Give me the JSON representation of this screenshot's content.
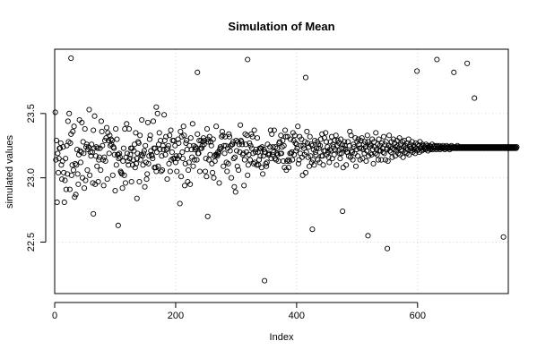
{
  "chart_data": {
    "type": "scatter",
    "title": "Simulation of Mean",
    "xlabel": "Index",
    "ylabel": "simulated values",
    "xlim": [
      0,
      750
    ],
    "ylim": [
      22.1,
      24.0
    ],
    "x_ticks": [
      0,
      200,
      400,
      600
    ],
    "y_ticks": [
      22.5,
      23.0,
      23.5
    ],
    "x_tick_labels": [
      "0",
      "200",
      "400",
      "600"
    ],
    "y_tick_labels": [
      "22.5",
      "23.0",
      "23.5"
    ],
    "grid": true,
    "series": [
      {
        "n": 750,
        "marker": "open-circle",
        "values": [
          23.51,
          23.14,
          23.29,
          22.81,
          23.19,
          23.04,
          23.15,
          23.23,
          23.23,
          23.27,
          23.1,
          22.99,
          23.13,
          23.24,
          23.04,
          22.81,
          22.98,
          23.15,
          22.91,
          23.25,
          23.03,
          23.44,
          23.28,
          23.5,
          22.91,
          23.27,
          23.34,
          23.02,
          23.1,
          23.36,
          23.06,
          23.4,
          22.85,
          23.11,
          22.87,
          23.1,
          23.22,
          23.03,
          22.95,
          23.18,
          23.45,
          23.21,
          23.12,
          23.2,
          23.43,
          23.0,
          23.28,
          23.19,
          22.92,
          23.38,
          22.98,
          23.24,
          23.26,
          23.06,
          23.22,
          23.24,
          23.53,
          23.02,
          23.2,
          23.17,
          23.26,
          23.2,
          22.96,
          23.37,
          23.23,
          23.48,
          22.95,
          23.17,
          23.24,
          23.09,
          23.23,
          22.97,
          23.14,
          23.16,
          23.23,
          23.06,
          23.44,
          23.36,
          23.25,
          23.14,
          22.94,
          23.16,
          23.29,
          23.13,
          23.31,
          23.39,
          22.99,
          23.35,
          23.29,
          23.19,
          23.33,
          23.25,
          23.3,
          23.26,
          23.29,
          23.02,
          23.24,
          23.23,
          23.18,
          22.9,
          23.38,
          23.1,
          23.3,
          23.18,
          23.18,
          23.15,
          23.19,
          23.16,
          23.05,
          23.04,
          23.03,
          22.92,
          23.13,
          23.23,
          23.02,
          23.38,
          22.96,
          23.16,
          23.42,
          23.19,
          23.13,
          23.1,
          23.38,
          23.15,
          23.18,
          23.23,
          22.97,
          23.23,
          23.1,
          23.14,
          23.21,
          23.26,
          23.08,
          23.35,
          23.11,
          23.15,
          23.19,
          23.28,
          23.27,
          22.97,
          23.33,
          23.14,
          23.18,
          23.45,
          23.17,
          23.1,
          23.19,
          23.21,
          22.93,
          23.25,
          23.12,
          22.99,
          23.03,
          23.43,
          23.11,
          23.17,
          23.3,
          23.33,
          23.21,
          23.18,
          23.17,
          23.15,
          23.44,
          23.23,
          23.08,
          23.23,
          23.08,
          23.05,
          23.2,
          23.5,
          23.09,
          23.26,
          23.35,
          23.22,
          23.29,
          23.05,
          23.17,
          23.06,
          23.25,
          23.22,
          23.49,
          23.29,
          23.18,
          23.32,
          23.22,
          22.99,
          23.23,
          23.25,
          23.11,
          23.33,
          23.05,
          23.37,
          23.14,
          23.2,
          23.29,
          23.15,
          23.29,
          23.15,
          23.25,
          23.12,
          23.17,
          23.05,
          23.15,
          23.3,
          23.27,
          23.17,
          22.8,
          23.36,
          23.01,
          23.32,
          23.2,
          23.15,
          23.4,
          23.33,
          22.94,
          23.11,
          23.27,
          23.29,
          23.22,
          22.97,
          23.06,
          23.12,
          23.25,
          22.95,
          23.31,
          23.22,
          23.16,
          23.42,
          23.09,
          23.25,
          23.14,
          23.22,
          23.24,
          23.23,
          23.14,
          23.34,
          23.19,
          23.19,
          23.29,
          23.05,
          23.23,
          23.29,
          23.23,
          23.25,
          23.28,
          23.31,
          23.26,
          23.29,
          23.05,
          23.15,
          23.01,
          23.38,
          23.3,
          23.28,
          23.14,
          23.32,
          23.18,
          23.28,
          23.25,
          23.11,
          23.04,
          23.3,
          23.0,
          23.17,
          23.13,
          23.18,
          23.4,
          23.18,
          23.17,
          23.2,
          23.19,
          22.96,
          23.22,
          23.24,
          23.23,
          23.32,
          23.36,
          23.33,
          23.09,
          23.25,
          23.19,
          23.32,
          23.25,
          23.12,
          23.05,
          23.23,
          23.11,
          23.34,
          23.32,
          23.21,
          23.25,
          23.0,
          23.26,
          23.26,
          23.28,
          23.15,
          22.93,
          23.16,
          22.89,
          23.29,
          23.21,
          23.09,
          23.28,
          23.06,
          23.26,
          23.2,
          23.41,
          23.29,
          23.28,
          23.26,
          23.18,
          23.19,
          22.94,
          23.14,
          23.34,
          23.26,
          23.2,
          23.33,
          23.02,
          23.1,
          23.18,
          23.27,
          23.14,
          23.25,
          23.34,
          23.23,
          23.32,
          23.19,
          23.11,
          23.37,
          23.12,
          23.2,
          23.22,
          23.1,
          23.31,
          23.2,
          23.1,
          23.14,
          23.23,
          23.17,
          23.23,
          23.08,
          23.24,
          23.03,
          23.17,
          23.22,
          23.2,
          23.2,
          23.11,
          23.09,
          23.12,
          23.26,
          23.18,
          23.19,
          23.18,
          23.24,
          23.37,
          23.15,
          23.34,
          23.18,
          23.24,
          23.2,
          23.37,
          23.15,
          23.24,
          23.14,
          23.19,
          23.23,
          23.18,
          23.13,
          23.27,
          23.28,
          23.19,
          23.33,
          23.19,
          23.24,
          23.29,
          23.13,
          23.25,
          23.08,
          23.37,
          23.32,
          23.06,
          23.13,
          23.32,
          23.14,
          23.08,
          23.13,
          23.19,
          23.3,
          23.19,
          23.2,
          23.14,
          23.35,
          23.29,
          23.18,
          23.33,
          23.27,
          23.21,
          23.26,
          23.23,
          23.4,
          23.11,
          23.14,
          23.32,
          23.19,
          23.25,
          23.3,
          23.16,
          23.02,
          23.25,
          23.23,
          23.18,
          23.28,
          23.04,
          23.2,
          23.36,
          23.27,
          23.16,
          23.24,
          23.09,
          23.32,
          23.17,
          23.26,
          23.12,
          23.25,
          23.14,
          23.22,
          23.1,
          23.29,
          23.2,
          23.18,
          23.23,
          23.28,
          23.14,
          23.26,
          23.23,
          23.12,
          23.25,
          23.3,
          23.17,
          23.34,
          23.17,
          23.1,
          23.21,
          23.31,
          23.21,
          23.35,
          23.28,
          23.18,
          23.24,
          23.2,
          23.16,
          23.12,
          23.22,
          23.28,
          23.21,
          23.32,
          23.15,
          23.26,
          23.24,
          23.18,
          23.29,
          23.22,
          23.33,
          23.1,
          23.25,
          23.29,
          23.21,
          23.27,
          23.19,
          23.15,
          23.3,
          23.19,
          23.23,
          23.26,
          23.08,
          23.23,
          23.28,
          23.25,
          23.22,
          23.1,
          23.2,
          23.2,
          23.28,
          23.17,
          23.25,
          23.36,
          23.16,
          23.33,
          23.21,
          23.2,
          23.14,
          23.26,
          23.24,
          23.19,
          23.31,
          23.09,
          23.22,
          23.28,
          23.17,
          23.3,
          23.26,
          23.23,
          23.14,
          23.29,
          23.23,
          23.31,
          23.15,
          23.22,
          23.26,
          23.19,
          23.28,
          23.24,
          23.13,
          23.21,
          23.33,
          23.28,
          23.17,
          23.24,
          23.26,
          23.19,
          23.25,
          23.18,
          23.3,
          23.22,
          23.11,
          23.28,
          23.24,
          23.19,
          23.35,
          23.22,
          23.18,
          23.26,
          23.14,
          23.3,
          23.21,
          23.25,
          23.21,
          23.14,
          23.27,
          23.23,
          23.2,
          23.32,
          23.19,
          23.26,
          23.14,
          23.28,
          23.22,
          23.23,
          23.13,
          23.25,
          23.33,
          23.21,
          23.24,
          23.2,
          23.28,
          23.16,
          23.23,
          23.3,
          23.22,
          23.27,
          23.17,
          23.24,
          23.21,
          23.29,
          23.25,
          23.19,
          23.23,
          23.31,
          23.18,
          23.26,
          23.22,
          23.21,
          23.28,
          23.16,
          23.24,
          23.29,
          23.2,
          23.25,
          23.23,
          23.19,
          23.27,
          23.22,
          23.3,
          23.18,
          23.24,
          23.26,
          23.21,
          23.23,
          23.28,
          23.2,
          23.25,
          23.22,
          23.24,
          23.19,
          23.27,
          23.23,
          23.21,
          23.26,
          23.22,
          23.25,
          23.2,
          23.28,
          23.23,
          23.24,
          23.21,
          23.26,
          23.22,
          23.25,
          23.23,
          23.24,
          23.22,
          23.26,
          23.23,
          23.25,
          23.21,
          23.24,
          23.23,
          23.25,
          23.22,
          23.24,
          23.23,
          23.26,
          23.22,
          23.24,
          23.23,
          23.25,
          23.23,
          23.24,
          23.22,
          23.25,
          23.23,
          23.24,
          23.23,
          23.25,
          23.22,
          23.24,
          23.23,
          23.24,
          23.23,
          23.25,
          23.23,
          23.24,
          23.22,
          23.24,
          23.23,
          23.25,
          23.23,
          23.24,
          23.23,
          23.24,
          23.22,
          23.24,
          23.23,
          23.25,
          23.23,
          23.24,
          23.23,
          23.24,
          23.23,
          23.24,
          23.23,
          23.24,
          23.23,
          23.25,
          23.23,
          23.24,
          23.23,
          23.24,
          23.23,
          23.24,
          23.23,
          23.24,
          23.23,
          23.24,
          23.23,
          23.24,
          23.23,
          23.24,
          23.23,
          23.24,
          23.23,
          23.24,
          23.23,
          23.24,
          23.23,
          23.24,
          23.23,
          23.24,
          23.23,
          23.24,
          23.23,
          23.24,
          23.23,
          23.24,
          23.23,
          23.24,
          23.23,
          23.24,
          23.23,
          23.24,
          23.23,
          23.24,
          23.23,
          23.24,
          23.23,
          23.24,
          23.23,
          23.24,
          23.23,
          23.24,
          23.23,
          23.24,
          23.23,
          23.24,
          23.23,
          23.24,
          23.23,
          23.24,
          23.23,
          23.24,
          23.23,
          23.24,
          23.23,
          23.24,
          23.23,
          23.24,
          23.23,
          23.24,
          23.23,
          23.24,
          23.23,
          23.24,
          23.23,
          23.24,
          23.23,
          23.24,
          23.23,
          23.24,
          23.23,
          23.24,
          23.23,
          23.24,
          23.23,
          23.24,
          23.23,
          23.24,
          23.23,
          23.24,
          23.23,
          23.24,
          23.23,
          23.24,
          23.23,
          23.24,
          23.23,
          23.24,
          23.23,
          23.24,
          23.23,
          23.24,
          23.23,
          23.24
        ]
      }
    ],
    "highlighted_points": [
      {
        "x": 27,
        "y": 23.93
      },
      {
        "x": 64,
        "y": 22.72
      },
      {
        "x": 105,
        "y": 22.63
      },
      {
        "x": 136,
        "y": 22.84
      },
      {
        "x": 168,
        "y": 23.55
      },
      {
        "x": 236,
        "y": 23.82
      },
      {
        "x": 253,
        "y": 22.7
      },
      {
        "x": 319,
        "y": 23.92
      },
      {
        "x": 347,
        "y": 22.2
      },
      {
        "x": 415,
        "y": 23.78
      },
      {
        "x": 426,
        "y": 22.6
      },
      {
        "x": 476,
        "y": 22.74
      },
      {
        "x": 518,
        "y": 22.55
      },
      {
        "x": 550,
        "y": 22.45
      },
      {
        "x": 599,
        "y": 23.83
      },
      {
        "x": 632,
        "y": 23.92
      },
      {
        "x": 660,
        "y": 23.82
      },
      {
        "x": 682,
        "y": 23.89
      },
      {
        "x": 694,
        "y": 23.62
      },
      {
        "x": 742,
        "y": 22.54
      }
    ]
  }
}
